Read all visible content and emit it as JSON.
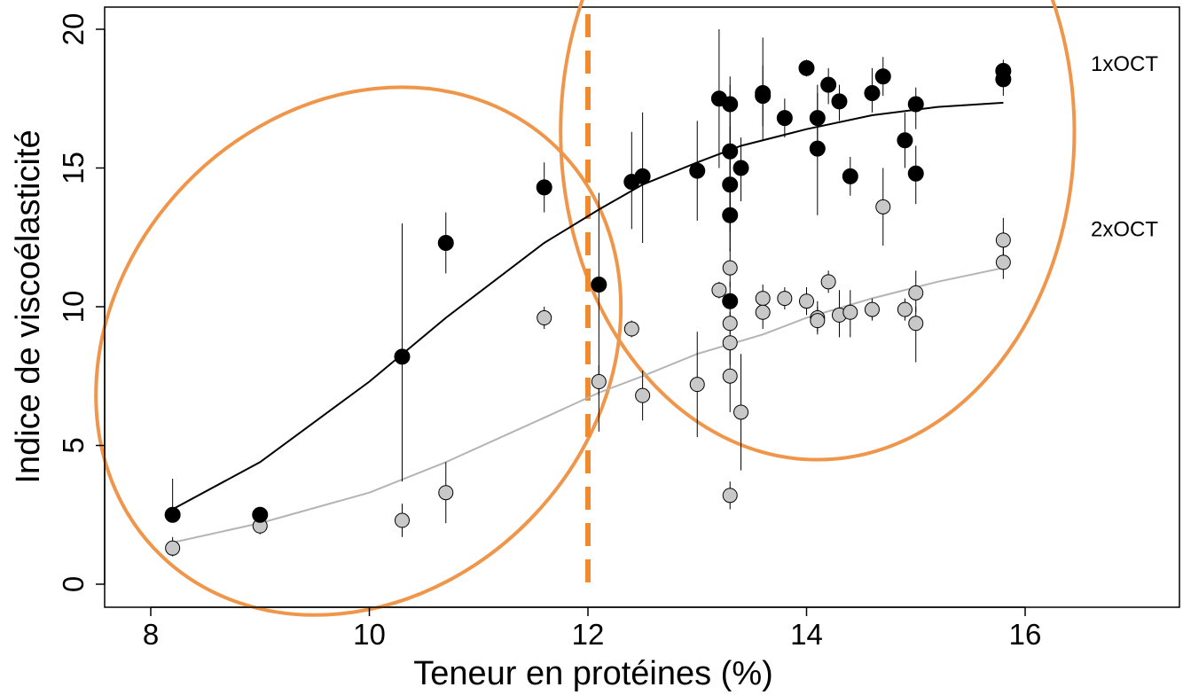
{
  "chart_data": {
    "type": "scatter",
    "title": "",
    "xlabel": "Teneur en protéines (%)",
    "ylabel": "Indice de viscoélasticité",
    "xlim": [
      7.6,
      17.3
    ],
    "ylim": [
      -0.8,
      20.8
    ],
    "xticks": [
      8,
      10,
      12,
      14,
      16
    ],
    "yticks": [
      0,
      5,
      10,
      15,
      20
    ],
    "grid": false,
    "series": [
      {
        "name": "1xOCT",
        "color": "#000000",
        "fit_color": "#000000",
        "points": [
          {
            "x": 8.2,
            "y": 2.5,
            "err": [
              2.3,
              3.8
            ]
          },
          {
            "x": 9.0,
            "y": 2.5,
            "err": [
              2.4,
              2.6
            ]
          },
          {
            "x": 10.3,
            "y": 8.2,
            "err": [
              3.7,
              13.0
            ]
          },
          {
            "x": 10.7,
            "y": 12.3,
            "err": [
              11.2,
              13.4
            ]
          },
          {
            "x": 11.6,
            "y": 14.3,
            "err": [
              13.4,
              15.2
            ]
          },
          {
            "x": 12.1,
            "y": 10.8,
            "err": [
              5.5,
              14.1
            ]
          },
          {
            "x": 12.4,
            "y": 14.5,
            "err": [
              12.8,
              16.3
            ]
          },
          {
            "x": 12.5,
            "y": 14.7,
            "err": [
              12.3,
              17.0
            ]
          },
          {
            "x": 13.0,
            "y": 14.9,
            "err": [
              13.1,
              16.7
            ]
          },
          {
            "x": 13.2,
            "y": 17.5,
            "err": [
              15.0,
              20.0
            ]
          },
          {
            "x": 13.3,
            "y": 17.3,
            "err": [
              13.0,
              18.3
            ]
          },
          {
            "x": 13.3,
            "y": 15.6,
            "err": [
              12.7,
              18.0
            ]
          },
          {
            "x": 13.3,
            "y": 14.4,
            "err": [
              12.0,
              16.5
            ]
          },
          {
            "x": 13.3,
            "y": 13.3,
            "err": [
              12.0,
              14.5
            ]
          },
          {
            "x": 13.3,
            "y": 10.2,
            "err": [
              9.4,
              10.9
            ]
          },
          {
            "x": 13.4,
            "y": 15.0,
            "err": [
              13.8,
              16.1
            ]
          },
          {
            "x": 13.6,
            "y": 17.6,
            "err": [
              16.0,
              19.7
            ]
          },
          {
            "x": 13.6,
            "y": 17.7,
            "err": [
              16.5,
              18.7
            ]
          },
          {
            "x": 13.8,
            "y": 16.8,
            "err": [
              16.1,
              17.5
            ]
          },
          {
            "x": 14.0,
            "y": 18.6,
            "err": [
              18.3,
              18.9
            ]
          },
          {
            "x": 14.1,
            "y": 16.8,
            "err": [
              15.8,
              17.7
            ]
          },
          {
            "x": 14.1,
            "y": 15.7,
            "err": [
              13.3,
              18.0
            ]
          },
          {
            "x": 14.2,
            "y": 18.0,
            "err": [
              17.3,
              18.6
            ]
          },
          {
            "x": 14.3,
            "y": 17.4,
            "err": [
              16.7,
              18.0
            ]
          },
          {
            "x": 14.4,
            "y": 14.7,
            "err": [
              14.0,
              15.4
            ]
          },
          {
            "x": 14.6,
            "y": 17.7,
            "err": [
              17.0,
              18.6
            ]
          },
          {
            "x": 14.7,
            "y": 18.3,
            "err": [
              17.6,
              19.0
            ]
          },
          {
            "x": 14.9,
            "y": 16.0,
            "err": [
              15.0,
              17.0
            ]
          },
          {
            "x": 15.0,
            "y": 17.3,
            "err": [
              16.4,
              17.9
            ]
          },
          {
            "x": 15.0,
            "y": 14.8,
            "err": [
              13.7,
              15.8
            ]
          },
          {
            "x": 15.8,
            "y": 18.5,
            "err": [
              18.0,
              18.9
            ]
          },
          {
            "x": 15.8,
            "y": 18.2,
            "err": [
              17.6,
              18.7
            ]
          }
        ],
        "fit": [
          [
            8.2,
            2.7
          ],
          [
            9.0,
            4.4
          ],
          [
            10.0,
            7.3
          ],
          [
            10.7,
            9.6
          ],
          [
            11.6,
            12.3
          ],
          [
            12.1,
            13.5
          ],
          [
            12.5,
            14.4
          ],
          [
            13.0,
            15.2
          ],
          [
            13.4,
            15.8
          ],
          [
            14.0,
            16.4
          ],
          [
            14.6,
            16.9
          ],
          [
            15.2,
            17.2
          ],
          [
            15.8,
            17.35
          ]
        ]
      },
      {
        "name": "2xOCT",
        "color": "#c8c8c8",
        "fit_color": "#b4b4b4",
        "points": [
          {
            "x": 8.2,
            "y": 1.3,
            "err": [
              1.0,
              1.7
            ]
          },
          {
            "x": 9.0,
            "y": 2.1,
            "err": [
              1.8,
              2.4
            ]
          },
          {
            "x": 10.3,
            "y": 2.3,
            "err": [
              1.7,
              2.9
            ]
          },
          {
            "x": 10.7,
            "y": 3.3,
            "err": [
              2.2,
              4.4
            ]
          },
          {
            "x": 11.6,
            "y": 9.6,
            "err": [
              9.2,
              10.0
            ]
          },
          {
            "x": 12.1,
            "y": 7.3,
            "err": [
              6.8,
              7.9
            ]
          },
          {
            "x": 12.4,
            "y": 9.2,
            "err": [
              8.9,
              9.5
            ]
          },
          {
            "x": 12.5,
            "y": 6.8,
            "err": [
              5.9,
              7.7
            ]
          },
          {
            "x": 13.0,
            "y": 7.2,
            "err": [
              5.3,
              9.1
            ]
          },
          {
            "x": 13.2,
            "y": 10.6,
            "err": [
              10.3,
              10.9
            ]
          },
          {
            "x": 13.3,
            "y": 11.4,
            "err": [
              10.7,
              12.1
            ]
          },
          {
            "x": 13.3,
            "y": 9.4,
            "err": [
              9.0,
              9.8
            ]
          },
          {
            "x": 13.3,
            "y": 8.7,
            "err": [
              7.9,
              9.5
            ]
          },
          {
            "x": 13.3,
            "y": 7.5,
            "err": [
              6.2,
              8.8
            ]
          },
          {
            "x": 13.3,
            "y": 3.2,
            "err": [
              2.7,
              3.7
            ]
          },
          {
            "x": 13.4,
            "y": 6.2,
            "err": [
              4.1,
              8.3
            ]
          },
          {
            "x": 13.6,
            "y": 10.3,
            "err": [
              9.8,
              10.8
            ]
          },
          {
            "x": 13.6,
            "y": 9.8,
            "err": [
              9.2,
              10.4
            ]
          },
          {
            "x": 13.8,
            "y": 10.3,
            "err": [
              9.9,
              10.7
            ]
          },
          {
            "x": 14.0,
            "y": 10.2,
            "err": [
              9.7,
              10.7
            ]
          },
          {
            "x": 14.1,
            "y": 9.6,
            "err": [
              9.1,
              10.2
            ]
          },
          {
            "x": 14.1,
            "y": 9.5,
            "err": [
              9.0,
              10.0
            ]
          },
          {
            "x": 14.2,
            "y": 10.9,
            "err": [
              10.5,
              11.3
            ]
          },
          {
            "x": 14.3,
            "y": 9.7,
            "err": [
              8.9,
              10.6
            ]
          },
          {
            "x": 14.4,
            "y": 9.8,
            "err": [
              8.9,
              10.6
            ]
          },
          {
            "x": 14.6,
            "y": 9.9,
            "err": [
              9.5,
              10.3
            ]
          },
          {
            "x": 14.7,
            "y": 13.6,
            "err": [
              12.2,
              15.0
            ]
          },
          {
            "x": 14.9,
            "y": 9.9,
            "err": [
              9.5,
              10.3
            ]
          },
          {
            "x": 15.0,
            "y": 10.5,
            "err": [
              9.8,
              11.3
            ]
          },
          {
            "x": 15.0,
            "y": 9.4,
            "err": [
              8.0,
              10.0
            ]
          },
          {
            "x": 15.8,
            "y": 12.4,
            "err": [
              11.6,
              13.2
            ]
          },
          {
            "x": 15.8,
            "y": 11.6,
            "err": [
              11.0,
              12.3
            ]
          }
        ],
        "fit": [
          [
            8.2,
            1.5
          ],
          [
            9.0,
            2.2
          ],
          [
            10.0,
            3.3
          ],
          [
            10.7,
            4.4
          ],
          [
            11.6,
            6.0
          ],
          [
            12.1,
            6.9
          ],
          [
            12.5,
            7.5
          ],
          [
            13.0,
            8.3
          ],
          [
            13.6,
            9.0
          ],
          [
            14.0,
            9.6
          ],
          [
            14.6,
            10.3
          ],
          [
            15.2,
            10.9
          ],
          [
            15.8,
            11.4
          ]
        ]
      }
    ],
    "threshold_line": {
      "x": 12,
      "color": "#f08a2c",
      "style": "dashed"
    },
    "highlight_ellipses": [
      {
        "color": "#f0964a",
        "cx": 9.9,
        "cy": 8.4,
        "rx": 2.6,
        "ry": 2.2,
        "angle": -46
      },
      {
        "color": "#f0964a",
        "cx": 14.1,
        "cy": 16.3,
        "rx": 2.35,
        "ry": 3.0,
        "angle": 0
      }
    ]
  }
}
